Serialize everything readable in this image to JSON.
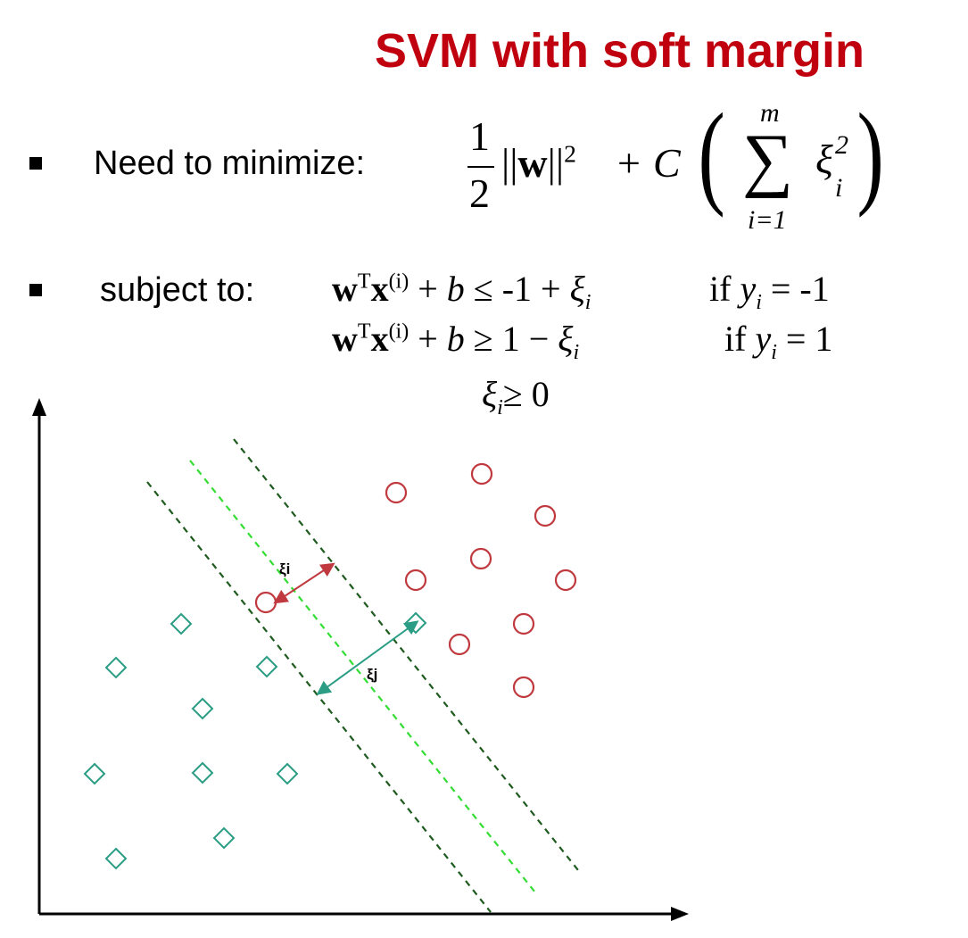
{
  "title": "SVM with soft margin",
  "objective": {
    "label": "Need to minimize:",
    "frac_num": "1",
    "frac_den": "2",
    "norm_left": "||",
    "w": "w",
    "norm_right": "||",
    "norm_exp": "2",
    "plus": "+",
    "C": "C",
    "sum_upper": "m",
    "sum_symbol": "∑",
    "sum_lower": "i=1",
    "xi": "ξ",
    "xi_sub": "i",
    "xi_sup": "2",
    "paren_left": "(",
    "paren_right": ")"
  },
  "constraints": {
    "label": "subject to:",
    "line1": {
      "w": "w",
      "T": "T",
      "x": "x",
      "sup": "(i)",
      "rest": " + ",
      "b": "b",
      "op": " ≤ -1 + ",
      "xi": "ξ",
      "sub": "i",
      "cond_if": "if ",
      "y": "y",
      "ysub": "i",
      "cond_val": " = -1"
    },
    "line2": {
      "w": "w",
      "T": "T",
      "x": "x",
      "sup": "(i)",
      "rest": " + ",
      "b": "b",
      "op": " ≥ 1 − ",
      "xi": "ξ",
      "sub": "i",
      "cond_if": "if ",
      "y": "y",
      "ysub": "i",
      "cond_val": " = 1"
    },
    "line3": {
      "xi": "ξ",
      "sub": "i",
      "op": "≥ 0"
    }
  },
  "diagram": {
    "xi_i_label": "ξi",
    "xi_j_label": "ξj",
    "colors": {
      "circle": "#c0393f",
      "diamond": "#2a9d84",
      "margin_line": "#1f5a1f",
      "center_line": "#33dd33",
      "arrow_i": "#c0393f",
      "arrow_j": "#2a9d84"
    },
    "icons": {
      "circle": "circle-icon",
      "diamond": "diamond-icon"
    }
  }
}
